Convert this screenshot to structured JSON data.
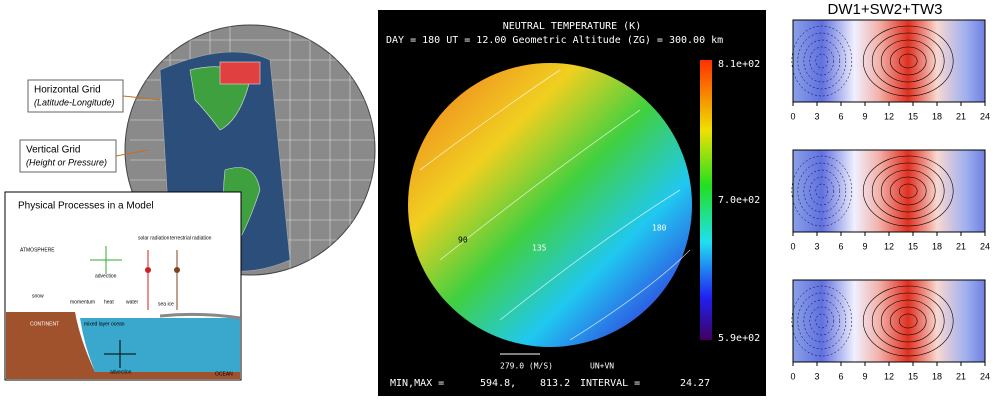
{
  "left": {
    "horizontal_grid": "Horizontal Grid",
    "horizontal_grid_sub": "(Latitude-Longitude)",
    "vertical_grid": "Vertical Grid",
    "vertical_grid_sub": "(Height or Pressure)",
    "inset": {
      "title": "Physical Processes in a Model",
      "atmosphere": "ATMOSPHERE",
      "advection_top": "advection",
      "solar": "solar radiation",
      "terrestrial": "terrestrial radiation",
      "snow": "snow",
      "momentum": "momentum",
      "heat": "heat",
      "water": "water",
      "sea_ice": "sea ice",
      "continent": "CONTINENT",
      "mixed_layer": "mixed layer ocean",
      "advection_bottom": "advection",
      "ocean": "OCEAN"
    }
  },
  "middle": {
    "title": "NEUTRAL TEMPERATURE (K)",
    "subtitle": "DAY = 180  UT = 12.00  Geometric Altitude (ZG) = 300.00 km",
    "colorbar_labels": [
      "8.1e+02",
      "7.0e+02",
      "5.9e+02"
    ],
    "contour_labels": [
      "90",
      "135",
      "180"
    ],
    "vector_scale": "279.0 (M/S)",
    "vector_name": "UN+VN",
    "minmax_label": "MIN,MAX =",
    "min": "594.8,",
    "max": "813.2",
    "interval_label": "INTERVAL =",
    "interval": "24.27"
  },
  "right": {
    "title": "DW1+SW2+TW3",
    "xticks": [
      0,
      3,
      6,
      9,
      12,
      15,
      18,
      21,
      24
    ]
  }
}
